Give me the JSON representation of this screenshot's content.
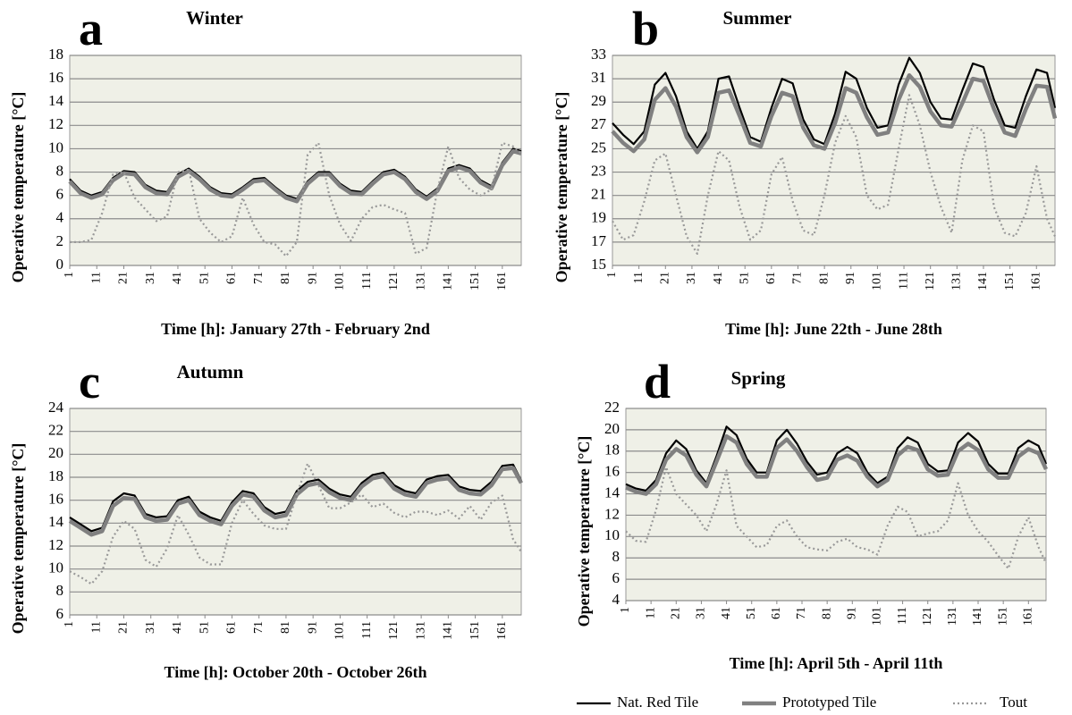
{
  "chart_data": [
    {
      "type": "line",
      "panel_label": "a",
      "title": "Winter",
      "y_label": "Operative temperature  [°C]",
      "x_label": "Time [h]:  January 27th - February 2nd",
      "x": [
        1,
        5,
        9,
        13,
        17,
        21,
        25,
        29,
        33,
        37,
        41,
        45,
        49,
        53,
        57,
        61,
        65,
        69,
        73,
        77,
        81,
        85,
        89,
        93,
        97,
        101,
        105,
        109,
        113,
        117,
        121,
        125,
        129,
        133,
        137,
        141,
        145,
        149,
        153,
        157,
        161,
        165,
        168
      ],
      "xlim": [
        1,
        168
      ],
      "xticks": [
        1,
        11,
        21,
        31,
        41,
        51,
        61,
        71,
        81,
        91,
        101,
        111,
        121,
        131,
        141,
        151,
        161
      ],
      "ylim": [
        0,
        18
      ],
      "yticks": [
        0,
        2,
        4,
        6,
        8,
        10,
        12,
        14,
        16,
        18
      ],
      "grid": true,
      "series": [
        {
          "name": "Nat. Red Tile",
          "color": "#000000",
          "values": [
            7.4,
            6.4,
            6.0,
            6.3,
            7.5,
            8.1,
            8.0,
            6.9,
            6.4,
            6.3,
            7.8,
            8.3,
            7.6,
            6.7,
            6.2,
            6.1,
            6.7,
            7.4,
            7.5,
            6.7,
            6.0,
            5.7,
            7.2,
            8.0,
            8.0,
            7.0,
            6.4,
            6.3,
            7.2,
            8.0,
            8.2,
            7.6,
            6.5,
            5.9,
            6.6,
            8.3,
            8.6,
            8.3,
            7.3,
            6.8,
            8.8,
            10.0,
            9.8
          ]
        },
        {
          "name": "Prototyped Tile",
          "color": "#808080",
          "values": [
            7.2,
            6.2,
            5.8,
            6.1,
            7.3,
            7.9,
            7.8,
            6.7,
            6.2,
            6.1,
            7.6,
            8.1,
            7.4,
            6.5,
            6.0,
            5.9,
            6.5,
            7.2,
            7.3,
            6.5,
            5.8,
            5.5,
            7.0,
            7.8,
            7.8,
            6.8,
            6.2,
            6.1,
            7.0,
            7.8,
            8.0,
            7.4,
            6.3,
            5.7,
            6.4,
            8.1,
            8.4,
            8.1,
            7.1,
            6.6,
            8.6,
            9.8,
            9.6
          ]
        },
        {
          "name": "Tout",
          "color": "#999999",
          "values": [
            2.0,
            2.0,
            2.2,
            4.5,
            7.8,
            8.0,
            5.8,
            4.8,
            3.8,
            4.2,
            8.0,
            8.2,
            4.0,
            2.8,
            2.0,
            2.5,
            5.8,
            3.5,
            2.0,
            1.8,
            0.8,
            2.0,
            9.5,
            10.5,
            6.0,
            3.5,
            2.1,
            4.0,
            5.0,
            5.2,
            4.8,
            4.5,
            1.0,
            1.5,
            6.5,
            10.2,
            7.5,
            6.5,
            6.0,
            6.5,
            10.5,
            10.2,
            9.6
          ]
        }
      ]
    },
    {
      "type": "line",
      "panel_label": "b",
      "title": "Summer",
      "y_label": "Operative temperature  [°C]",
      "x_label": "Time [h]:  June 22th - June 28th",
      "x": [
        1,
        5,
        9,
        13,
        17,
        21,
        25,
        29,
        33,
        37,
        41,
        45,
        49,
        53,
        57,
        61,
        65,
        69,
        73,
        77,
        81,
        85,
        89,
        93,
        97,
        101,
        105,
        109,
        113,
        117,
        121,
        125,
        129,
        133,
        137,
        141,
        145,
        149,
        153,
        157,
        161,
        165,
        168
      ],
      "xlim": [
        1,
        168
      ],
      "xticks": [
        1,
        11,
        21,
        31,
        41,
        51,
        61,
        71,
        81,
        91,
        101,
        111,
        121,
        131,
        141,
        151,
        161
      ],
      "ylim": [
        15,
        33
      ],
      "yticks": [
        15,
        17,
        19,
        21,
        23,
        25,
        27,
        29,
        31,
        33
      ],
      "grid": true,
      "series": [
        {
          "name": "Nat. Red Tile",
          "color": "#000000",
          "values": [
            27.2,
            26.2,
            25.4,
            26.5,
            30.5,
            31.5,
            29.5,
            26.5,
            25.0,
            26.5,
            31.0,
            31.2,
            28.5,
            26.0,
            25.6,
            28.5,
            31.0,
            30.6,
            27.5,
            25.8,
            25.4,
            28.0,
            31.6,
            31.0,
            28.5,
            26.8,
            27.0,
            30.5,
            32.8,
            31.5,
            29.0,
            27.6,
            27.5,
            30.0,
            32.3,
            32.0,
            29.2,
            27.0,
            26.8,
            29.5,
            31.8,
            31.5,
            28.5
          ]
        },
        {
          "name": "Prototyped Tile",
          "color": "#808080",
          "values": [
            26.5,
            25.5,
            24.8,
            25.8,
            29.2,
            30.2,
            28.6,
            26.0,
            24.7,
            26.0,
            29.8,
            30.0,
            27.8,
            25.5,
            25.2,
            27.8,
            29.8,
            29.5,
            26.8,
            25.3,
            25.0,
            27.2,
            30.2,
            29.8,
            27.7,
            26.2,
            26.4,
            29.2,
            31.3,
            30.3,
            28.2,
            27.0,
            26.9,
            28.9,
            31.0,
            30.8,
            28.4,
            26.4,
            26.1,
            28.4,
            30.4,
            30.3,
            27.6
          ]
        },
        {
          "name": "Tout",
          "color": "#999999",
          "values": [
            18.8,
            17.2,
            17.6,
            20.5,
            24.0,
            24.6,
            21.0,
            17.5,
            16.0,
            21.0,
            24.8,
            24.0,
            20.0,
            17.2,
            18.0,
            22.8,
            24.3,
            20.5,
            18.0,
            17.6,
            21.0,
            25.5,
            27.8,
            26.0,
            21.0,
            19.8,
            20.2,
            25.0,
            29.6,
            27.0,
            23.0,
            20.0,
            17.8,
            24.0,
            27.0,
            26.5,
            20.0,
            17.8,
            17.5,
            19.5,
            23.5,
            19.0,
            17.5
          ]
        }
      ]
    },
    {
      "type": "line",
      "panel_label": "c",
      "title": "Autumn",
      "y_label": "Operative temperature  [°C]",
      "x_label": "Time [h]:  October 20th - October 26th",
      "x": [
        1,
        5,
        9,
        13,
        17,
        21,
        25,
        29,
        33,
        37,
        41,
        45,
        49,
        53,
        57,
        61,
        65,
        69,
        73,
        77,
        81,
        85,
        89,
        93,
        97,
        101,
        105,
        109,
        113,
        117,
        121,
        125,
        129,
        133,
        137,
        141,
        145,
        149,
        153,
        157,
        161,
        165,
        168
      ],
      "xlim": [
        1,
        168
      ],
      "xticks": [
        1,
        11,
        21,
        31,
        41,
        51,
        61,
        71,
        81,
        91,
        101,
        111,
        121,
        131,
        141,
        151,
        161
      ],
      "ylim": [
        6,
        24
      ],
      "yticks": [
        6,
        8,
        10,
        12,
        14,
        16,
        18,
        20,
        22,
        24
      ],
      "grid": true,
      "series": [
        {
          "name": "Nat. Red Tile",
          "color": "#000000",
          "values": [
            14.5,
            13.9,
            13.3,
            13.6,
            15.9,
            16.6,
            16.4,
            14.8,
            14.5,
            14.6,
            16.0,
            16.3,
            15.0,
            14.5,
            14.2,
            15.8,
            16.8,
            16.6,
            15.4,
            14.8,
            15.0,
            16.8,
            17.6,
            17.8,
            17.0,
            16.5,
            16.3,
            17.5,
            18.2,
            18.4,
            17.3,
            16.8,
            16.6,
            17.8,
            18.1,
            18.2,
            17.2,
            16.9,
            16.8,
            17.6,
            19.0,
            19.1,
            17.7
          ]
        },
        {
          "name": "Prototyped Tile",
          "color": "#808080",
          "values": [
            14.2,
            13.6,
            13.0,
            13.3,
            15.5,
            16.2,
            16.1,
            14.5,
            14.2,
            14.3,
            15.7,
            16.0,
            14.7,
            14.2,
            13.9,
            15.5,
            16.5,
            16.3,
            15.1,
            14.5,
            14.7,
            16.5,
            17.3,
            17.5,
            16.7,
            16.2,
            16.0,
            17.2,
            17.9,
            18.1,
            17.0,
            16.5,
            16.3,
            17.5,
            17.8,
            17.9,
            16.9,
            16.6,
            16.5,
            17.3,
            18.7,
            18.8,
            17.5
          ]
        },
        {
          "name": "Tout",
          "color": "#999999",
          "values": [
            9.8,
            9.3,
            8.7,
            9.8,
            12.8,
            14.2,
            13.5,
            10.8,
            10.2,
            11.8,
            14.7,
            13.0,
            11.0,
            10.4,
            10.4,
            14.0,
            16.0,
            14.8,
            13.8,
            13.5,
            13.5,
            16.5,
            19.2,
            17.3,
            15.3,
            15.3,
            15.8,
            16.5,
            15.4,
            15.7,
            14.9,
            14.5,
            15.0,
            15.0,
            14.7,
            15.1,
            14.4,
            15.5,
            14.3,
            15.8,
            16.4,
            12.6,
            11.5
          ]
        }
      ]
    },
    {
      "type": "line",
      "panel_label": "d",
      "title": "Spring",
      "y_label": "Operative temperature  [°C]",
      "x_label": "Time [h]:  April 5th - April 11th",
      "x": [
        1,
        5,
        9,
        13,
        17,
        21,
        25,
        29,
        33,
        37,
        41,
        45,
        49,
        53,
        57,
        61,
        65,
        69,
        73,
        77,
        81,
        85,
        89,
        93,
        97,
        101,
        105,
        109,
        113,
        117,
        121,
        125,
        129,
        133,
        137,
        141,
        145,
        149,
        153,
        157,
        161,
        165,
        168
      ],
      "xlim": [
        1,
        168
      ],
      "xticks": [
        1,
        11,
        21,
        31,
        41,
        51,
        61,
        71,
        81,
        91,
        101,
        111,
        121,
        131,
        141,
        151,
        161
      ],
      "ylim": [
        4,
        22
      ],
      "yticks": [
        4,
        6,
        8,
        10,
        12,
        14,
        16,
        18,
        20,
        22
      ],
      "grid": true,
      "series": [
        {
          "name": "Nat. Red Tile",
          "color": "#000000",
          "values": [
            14.9,
            14.5,
            14.3,
            15.3,
            17.8,
            19.0,
            18.2,
            16.2,
            15.0,
            17.5,
            20.3,
            19.5,
            17.3,
            16.0,
            16.0,
            19.0,
            20.0,
            18.7,
            17.0,
            15.8,
            16.0,
            17.8,
            18.4,
            17.8,
            16.0,
            15.0,
            15.6,
            18.3,
            19.3,
            18.8,
            16.8,
            16.1,
            16.2,
            18.8,
            19.7,
            18.9,
            16.8,
            15.9,
            15.9,
            18.3,
            19.0,
            18.5,
            16.8
          ]
        },
        {
          "name": "Prototyped Tile",
          "color": "#808080",
          "values": [
            14.6,
            14.2,
            14.0,
            14.9,
            17.2,
            18.2,
            17.6,
            15.8,
            14.7,
            17.0,
            19.4,
            18.8,
            16.8,
            15.6,
            15.6,
            18.3,
            19.1,
            18.0,
            16.5,
            15.3,
            15.5,
            17.2,
            17.6,
            17.1,
            15.6,
            14.7,
            15.3,
            17.6,
            18.4,
            18.1,
            16.3,
            15.7,
            15.8,
            18.0,
            18.7,
            18.1,
            16.3,
            15.5,
            15.5,
            17.5,
            18.2,
            17.8,
            16.3
          ]
        },
        {
          "name": "Tout",
          "color": "#999999",
          "values": [
            10.5,
            9.6,
            9.5,
            12.5,
            16.5,
            14.0,
            13.0,
            12.0,
            10.5,
            13.0,
            16.2,
            11.0,
            10.0,
            9.0,
            9.2,
            11.0,
            11.5,
            10.0,
            9.0,
            8.8,
            8.7,
            9.5,
            9.8,
            9.0,
            8.8,
            8.3,
            11.0,
            12.8,
            12.3,
            10.0,
            10.3,
            10.5,
            11.5,
            15.0,
            12.0,
            10.5,
            9.5,
            8.2,
            7.0,
            10.0,
            11.8,
            9.0,
            7.5
          ]
        }
      ]
    }
  ]
}
